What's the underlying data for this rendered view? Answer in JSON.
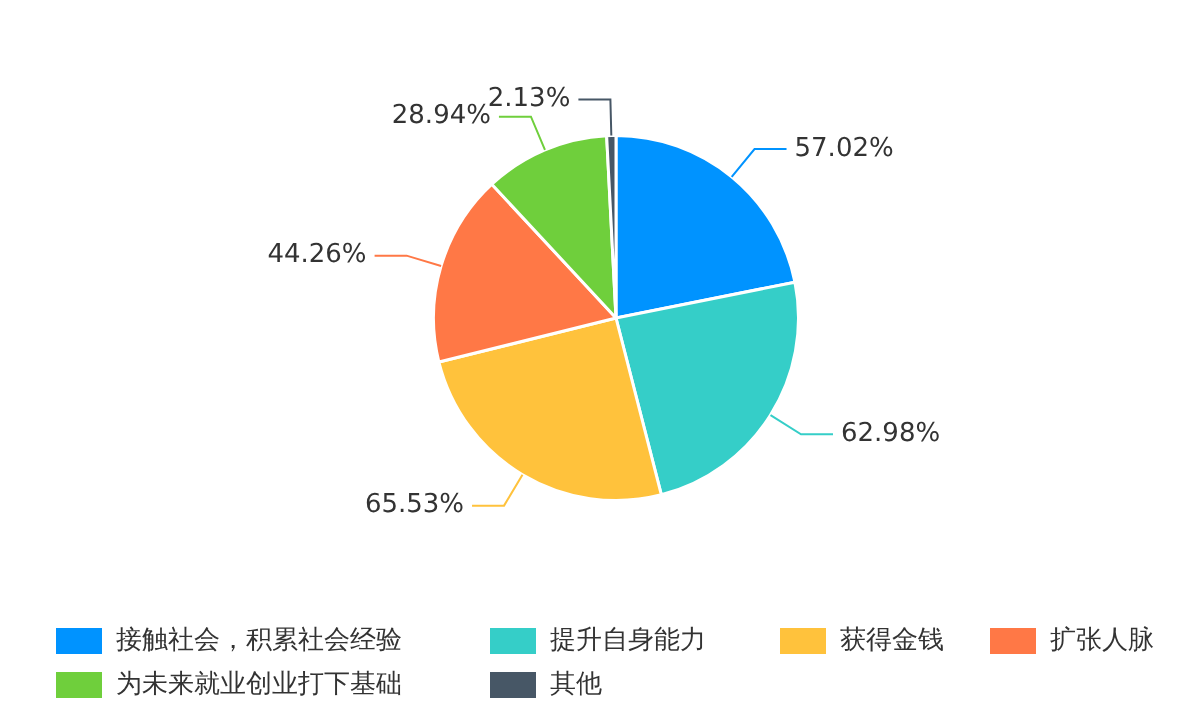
{
  "chart_data": {
    "type": "pie",
    "categories": [
      "接触社会，积累社会经验",
      "提升自身能力",
      "获得金钱",
      "扩张人脉",
      "为未来就业创业打下基础",
      "其他"
    ],
    "values": [
      57.02,
      62.98,
      65.53,
      44.26,
      28.94,
      2.13
    ],
    "colors": [
      "#0093ff",
      "#35cec8",
      "#ffc23c",
      "#ff7846",
      "#6fcf3c",
      "#475766"
    ],
    "value_labels": [
      "57.02%",
      "62.98%",
      "65.53%",
      "44.26%",
      "28.94%",
      "2.13%"
    ],
    "legend": "bottom"
  }
}
